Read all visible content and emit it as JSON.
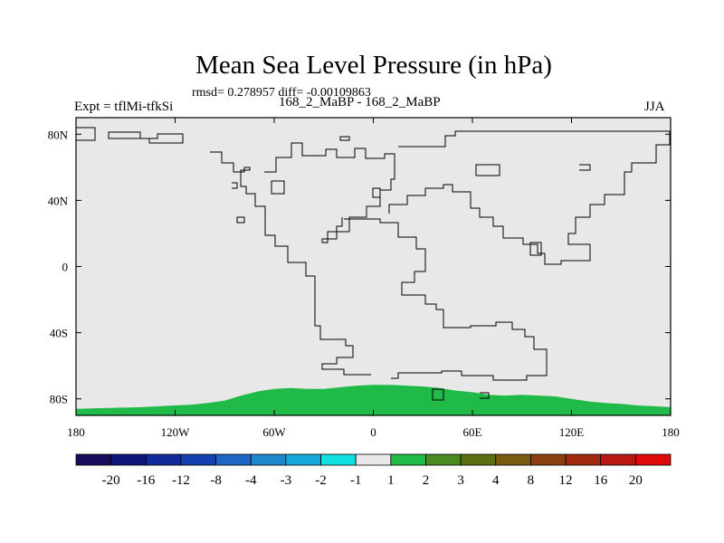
{
  "header": {
    "title": "Mean Sea Level Pressure (in hPa)",
    "stats": "rmsd= 0.278957 diff= -0.00109863",
    "expt": "Expt = tflMi-tfkSi",
    "comparison": "168_2_MaBP - 168_2_MaBP",
    "season": "JJA"
  },
  "chart_data": {
    "type": "heatmap",
    "title": "Mean Sea Level Pressure (in hPa)",
    "subtitle": "168_2_MaBP - 168_2_MaBP",
    "xlabel": "",
    "ylabel": "",
    "x_range": [
      -180,
      180
    ],
    "y_range": [
      -90,
      90
    ],
    "x_tick_labels": [
      "180",
      "120W",
      "60W",
      "0",
      "60E",
      "120E",
      "180"
    ],
    "x_tick_values": [
      -180,
      -120,
      -60,
      0,
      60,
      120,
      180
    ],
    "y_tick_labels": [
      "80N",
      "40N",
      "0",
      "40S",
      "80S"
    ],
    "y_tick_values": [
      80,
      40,
      0,
      -40,
      -80
    ],
    "background_bin": "-1 to 1",
    "colorbar": {
      "labels": [
        "-20",
        "-16",
        "-12",
        "-8",
        "-4",
        "-3",
        "-2",
        "-1",
        "1",
        "2",
        "3",
        "4",
        "8",
        "12",
        "16",
        "20"
      ],
      "colors": [
        "#1a0a5c",
        "#0f1878",
        "#102a9a",
        "#1540b0",
        "#1f66c4",
        "#1e88cc",
        "#14aadc",
        "#10e0e0",
        "#e8e8e8",
        "#1fba48",
        "#4a8a20",
        "#5a6e12",
        "#7a5a10",
        "#8a4010",
        "#a02a10",
        "#b81810",
        "#e00a0a"
      ]
    },
    "antarctic_band_bin": "1 to 2",
    "antarctic_band_profile_lon": [
      -180,
      -160,
      -140,
      -120,
      -110,
      -100,
      -90,
      -80,
      -70,
      -60,
      -50,
      -40,
      -30,
      -20,
      -10,
      0,
      10,
      20,
      30,
      40,
      50,
      60,
      70,
      80,
      90,
      100,
      110,
      120,
      130,
      140,
      150,
      160,
      170,
      180
    ],
    "antarctic_band_profile_lat": [
      -86,
      -85.5,
      -85,
      -84,
      -83.5,
      -82.5,
      -81,
      -78,
      -75.5,
      -74,
      -73.5,
      -74,
      -74,
      -73,
      -72,
      -71.5,
      -71.5,
      -72,
      -72.5,
      -73.5,
      -75,
      -76,
      -77.5,
      -78,
      -77.5,
      -78,
      -78.5,
      -80,
      -81.5,
      -82.5,
      -83,
      -84,
      -84.5,
      -85
    ]
  },
  "icons": {
    "coastlines": "coastline-outline"
  }
}
